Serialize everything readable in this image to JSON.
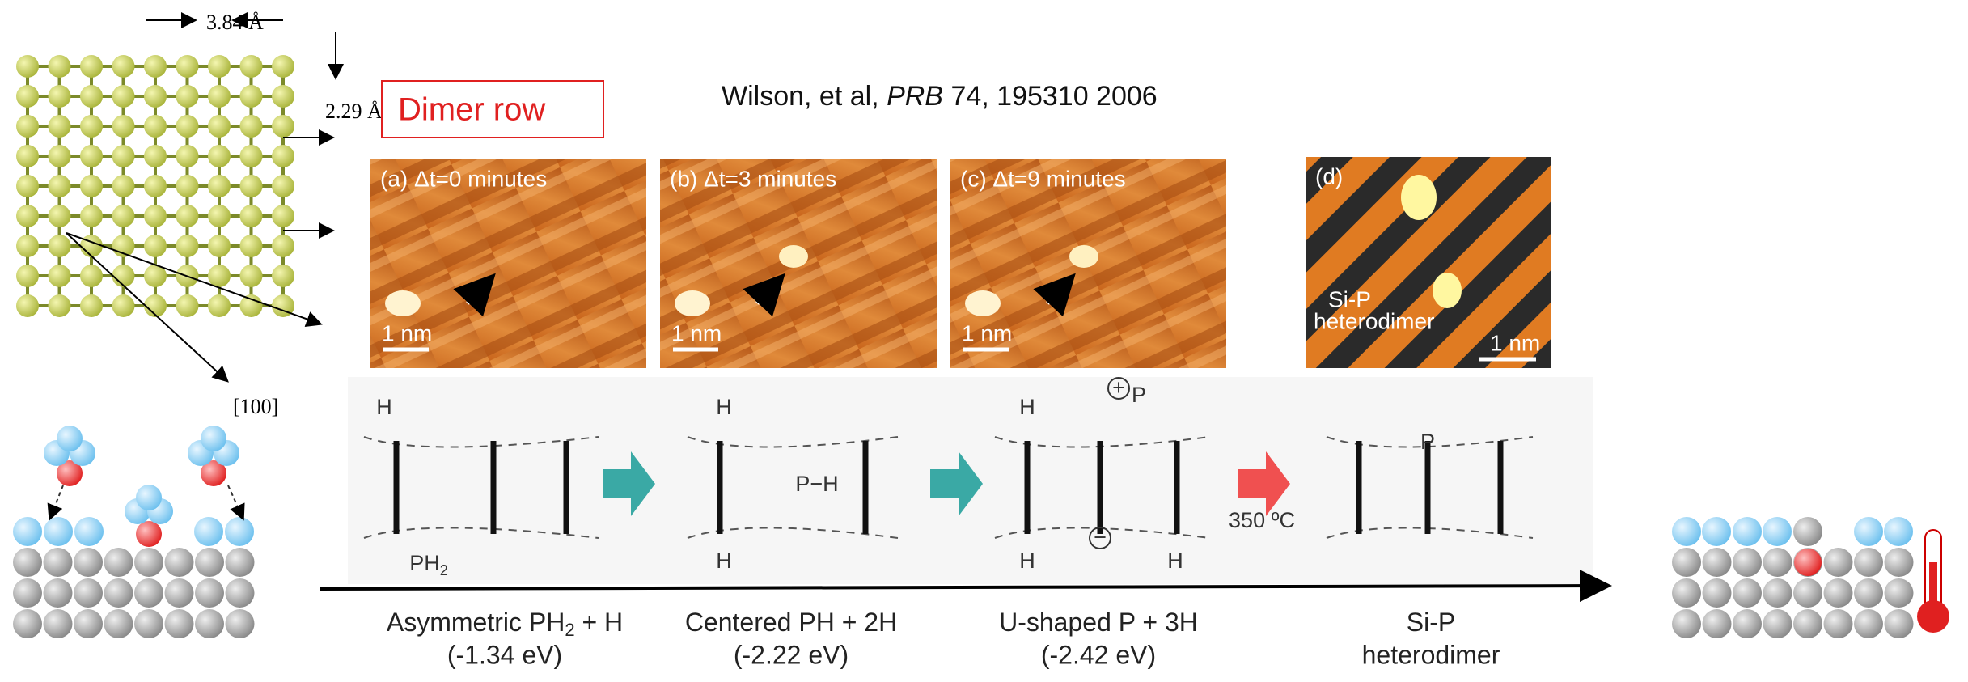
{
  "lattice": {
    "spacing": "3.84 Å",
    "dimer_spacing": "2.29 Å",
    "dimer_label": "Dimer row",
    "direction": "[100]"
  },
  "citation": {
    "authors": "Wilson, et al, ",
    "journal": "PRB",
    "details": " 74, 195310 2006"
  },
  "panels": [
    {
      "label": "(a) Δt=0 minutes",
      "scale": "1 nm"
    },
    {
      "label": "(b) Δt=3 minutes",
      "scale": "1 nm"
    },
    {
      "label": "(c) Δt=9 minutes",
      "scale": "1 nm"
    },
    {
      "label": "(d)",
      "scale": "1 nm",
      "annotation": [
        "Si-P",
        "heterodimer"
      ]
    }
  ],
  "chemistry": {
    "h": "H",
    "ph": "PH",
    "ph_sub": "2",
    "p_h": "P−H",
    "p": "P",
    "plus": "+",
    "minus": "−",
    "temperature": "350 ºC"
  },
  "captions": [
    {
      "pre": "Asymmetric PH",
      "sub": "2",
      "post": " + H",
      "energy": "(-1.34 eV)"
    },
    {
      "pre": "Centered PH + 2H",
      "energy": "(-2.22 eV)"
    },
    {
      "pre": "U-shaped P + 3H",
      "energy": "(-2.42 eV)"
    },
    {
      "pre": "Si-P",
      "energy": "heterodimer"
    }
  ]
}
